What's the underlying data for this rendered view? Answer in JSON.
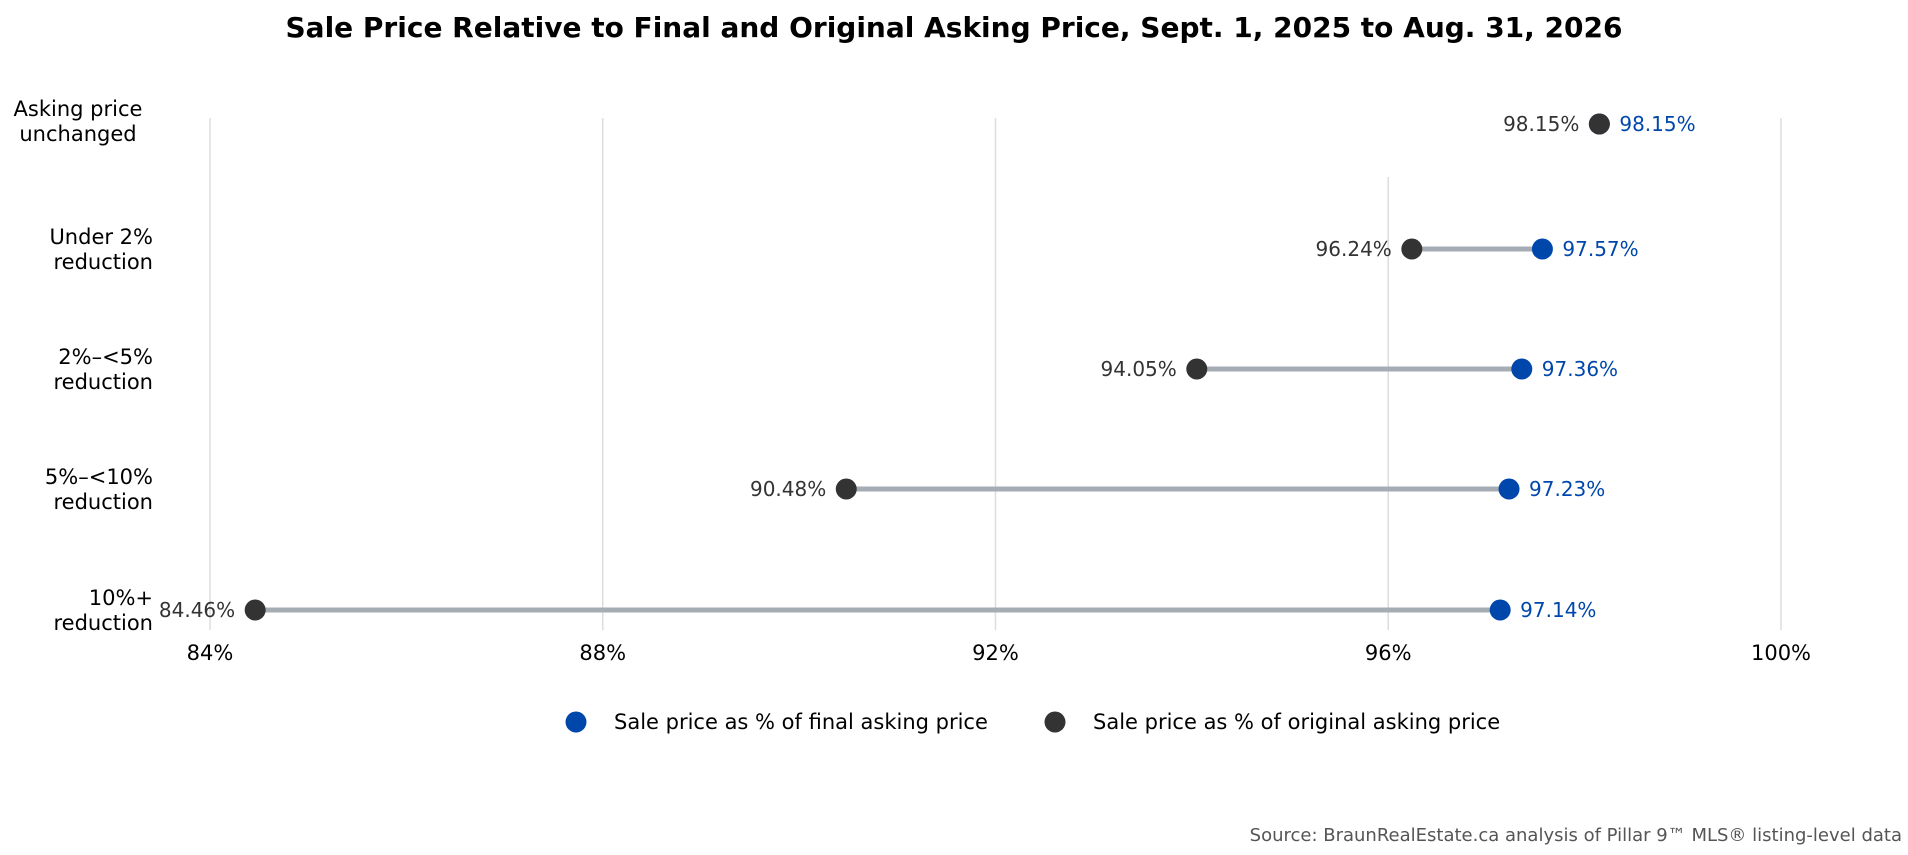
{
  "chart_data": {
    "type": "dumbbell",
    "title": "Sale Price Relative to Final and Original Asking Price, Sept. 1, 2025 to Aug. 31, 2026",
    "categories": [
      [
        "Asking price",
        "unchanged"
      ],
      [
        "Under 2%",
        "reduction"
      ],
      [
        "2%–<5%",
        "reduction"
      ],
      [
        "5%–<10%",
        "reduction"
      ],
      [
        "10%+",
        "reduction"
      ]
    ],
    "series": [
      {
        "name": "Sale price as % of final asking price",
        "values": [
          98.15,
          97.57,
          97.36,
          97.23,
          97.14
        ],
        "labels": [
          "98.15%",
          "97.57%",
          "97.36%",
          "97.23%",
          "97.14%"
        ],
        "color": "#0047AB"
      },
      {
        "name": "Sale price as % of original asking price",
        "values": [
          98.15,
          96.24,
          94.05,
          90.48,
          84.46
        ],
        "labels": [
          "98.15%",
          "96.24%",
          "94.05%",
          "90.48%",
          "84.46%"
        ],
        "color": "#333333"
      }
    ],
    "xlim": [
      84,
      100
    ],
    "xticks": [
      84,
      88,
      92,
      96,
      100
    ],
    "xtick_labels": [
      "84%",
      "88%",
      "92%",
      "96%",
      "100%"
    ],
    "grid": "vertical",
    "legend_position": "bottom-center",
    "connector_color": "#A5ACB4"
  },
  "source": "Source: BraunRealEstate.ca analysis of Pillar 9™ MLS® listing-level data"
}
